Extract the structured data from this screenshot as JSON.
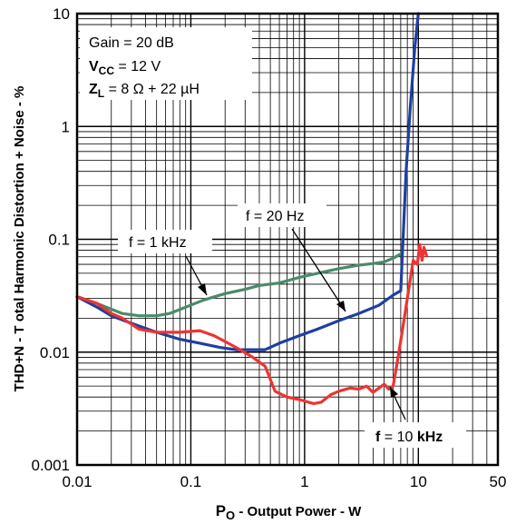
{
  "chart_data": {
    "type": "line",
    "x_scale": "log",
    "y_scale": "log",
    "xlim": [
      0.01,
      50
    ],
    "ylim": [
      0.001,
      10
    ],
    "grid": true,
    "xlabel": {
      "main": "P",
      "sub": "O",
      "rest": " - Output Power - W"
    },
    "ylabel": "THD+N - T otal Harmonic Distortion + Noise - %",
    "x_ticks": [
      {
        "value": 0.01,
        "label": "0.01"
      },
      {
        "value": 0.1,
        "label": "0.1"
      },
      {
        "value": 1,
        "label": "1"
      },
      {
        "value": 10,
        "label": "10"
      },
      {
        "value": 50,
        "label": "50"
      }
    ],
    "y_ticks": [
      {
        "value": 10,
        "label": "10"
      },
      {
        "value": 1,
        "label": "1"
      },
      {
        "value": 0.1,
        "label": "0.1"
      },
      {
        "value": 0.01,
        "label": "0.01"
      },
      {
        "value": 0.001,
        "label": "0.001"
      }
    ],
    "conditions": {
      "gain": "Gain = 20 dB",
      "vcc_main": "V",
      "vcc_sub": "CC",
      "vcc_rest": " = 12 V",
      "zl_main": "Z",
      "zl_sub": "L",
      "zl_rest": " = 8 Ω + 22 µH"
    },
    "series": [
      {
        "name": "f = 1 kHz",
        "color": "#4a8a6a",
        "points": [
          [
            0.01,
            0.031
          ],
          [
            0.015,
            0.027
          ],
          [
            0.02,
            0.024
          ],
          [
            0.025,
            0.022
          ],
          [
            0.035,
            0.021
          ],
          [
            0.05,
            0.021
          ],
          [
            0.065,
            0.022
          ],
          [
            0.09,
            0.025
          ],
          [
            0.13,
            0.029
          ],
          [
            0.2,
            0.033
          ],
          [
            0.3,
            0.036
          ],
          [
            0.4,
            0.039
          ],
          [
            0.6,
            0.041
          ],
          [
            0.9,
            0.046
          ],
          [
            1.3,
            0.05
          ],
          [
            2,
            0.055
          ],
          [
            3,
            0.059
          ],
          [
            4,
            0.061
          ],
          [
            5,
            0.063
          ],
          [
            6,
            0.068
          ],
          [
            7,
            0.074
          ]
        ]
      },
      {
        "name": "f = 20 Hz",
        "color": "#1f3fa0",
        "points": [
          [
            0.01,
            0.031
          ],
          [
            0.015,
            0.025
          ],
          [
            0.02,
            0.021
          ],
          [
            0.03,
            0.018
          ],
          [
            0.05,
            0.015
          ],
          [
            0.08,
            0.013
          ],
          [
            0.12,
            0.012
          ],
          [
            0.18,
            0.011
          ],
          [
            0.25,
            0.0105
          ],
          [
            0.35,
            0.0105
          ],
          [
            0.45,
            0.0105
          ],
          [
            0.6,
            0.012
          ],
          [
            0.9,
            0.014
          ],
          [
            1.3,
            0.016
          ],
          [
            2,
            0.019
          ],
          [
            3,
            0.022
          ],
          [
            4.5,
            0.026
          ],
          [
            6,
            0.032
          ],
          [
            7,
            0.035
          ],
          [
            7.3,
            0.09
          ],
          [
            7.8,
            0.4
          ],
          [
            8.5,
            1.5
          ],
          [
            9.3,
            5
          ],
          [
            10,
            10
          ]
        ]
      },
      {
        "name": "f = 10 kHz",
        "color": "#ee3333",
        "points": [
          [
            0.01,
            0.031
          ],
          [
            0.015,
            0.027
          ],
          [
            0.02,
            0.022
          ],
          [
            0.025,
            0.02
          ],
          [
            0.035,
            0.016
          ],
          [
            0.05,
            0.015
          ],
          [
            0.08,
            0.015
          ],
          [
            0.12,
            0.0155
          ],
          [
            0.16,
            0.014
          ],
          [
            0.25,
            0.011
          ],
          [
            0.35,
            0.009
          ],
          [
            0.45,
            0.0075
          ],
          [
            0.55,
            0.0045
          ],
          [
            0.7,
            0.004
          ],
          [
            0.9,
            0.0038
          ],
          [
            1.2,
            0.0035
          ],
          [
            1.4,
            0.0036
          ],
          [
            1.7,
            0.0042
          ],
          [
            2,
            0.0045
          ],
          [
            2.5,
            0.0048
          ],
          [
            3,
            0.0047
          ],
          [
            3.5,
            0.005
          ],
          [
            4,
            0.0044
          ],
          [
            4.5,
            0.0048
          ],
          [
            5,
            0.0052
          ],
          [
            5.5,
            0.0047
          ],
          [
            6,
            0.005
          ],
          [
            6.5,
            0.008
          ],
          [
            7.2,
            0.015
          ],
          [
            8,
            0.03
          ],
          [
            9,
            0.065
          ],
          [
            9.8,
            0.06
          ],
          [
            10.3,
            0.09
          ],
          [
            10.8,
            0.065
          ],
          [
            11.2,
            0.085
          ],
          [
            11.8,
            0.072
          ]
        ]
      }
    ],
    "annotations": [
      {
        "label": "f = 1 kHz",
        "bold_parts": []
      },
      {
        "label": "f = 20 Hz",
        "bold_parts": []
      },
      {
        "label_main": "f",
        "label_mid": " = 10 ",
        "label_end": "kHz"
      }
    ]
  }
}
